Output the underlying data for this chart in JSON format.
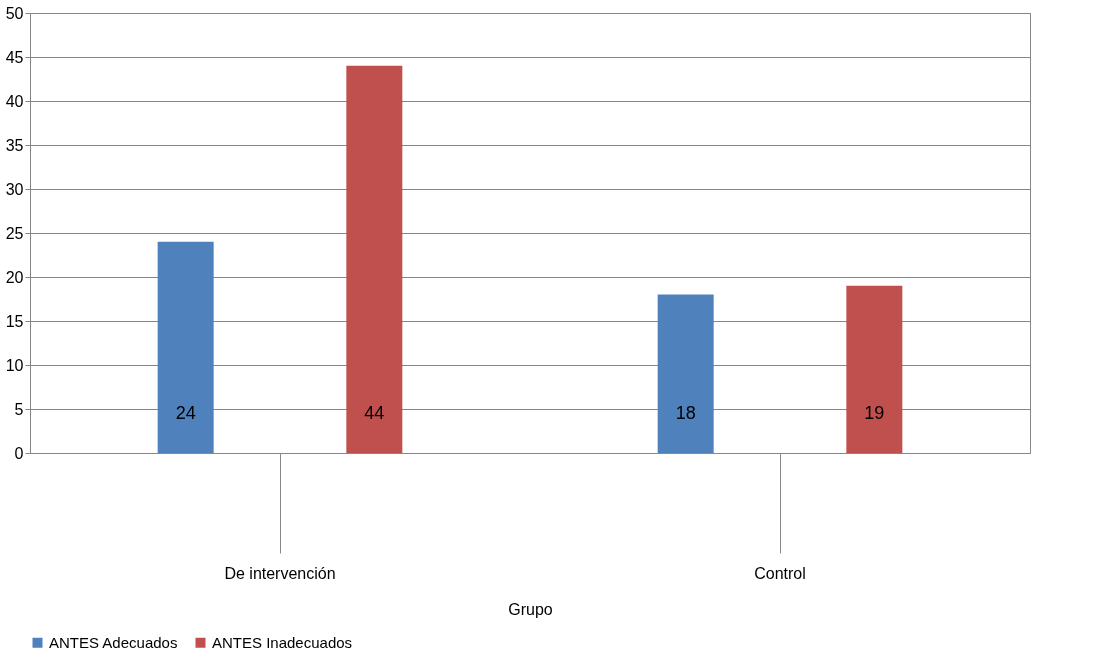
{
  "chart_data": {
    "type": "bar",
    "categories": [
      "De intervención",
      null,
      "Control",
      null
    ],
    "xlabel": "Grupo",
    "series": [
      {
        "name": "ANTES  Adecuados",
        "color": "#4f81bd",
        "values": [
          24,
          null,
          18,
          null
        ]
      },
      {
        "name": "ANTES  Inadecuados",
        "color": "#c0504d",
        "values": [
          44,
          null,
          19,
          null
        ]
      }
    ],
    "ylim": [
      0,
      50
    ],
    "yticks": [
      0,
      5,
      10,
      15,
      20,
      25,
      30,
      35,
      40,
      45,
      50
    ],
    "grid": "y",
    "legend": "bottom",
    "data_labels": true
  }
}
